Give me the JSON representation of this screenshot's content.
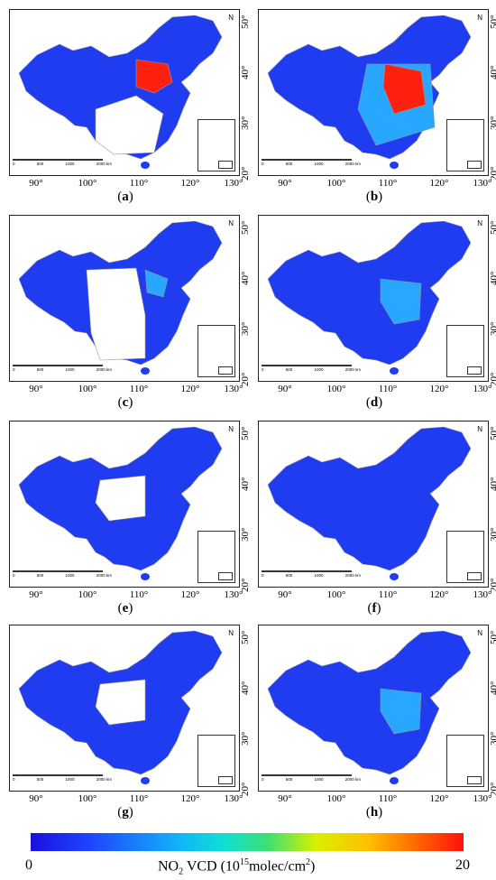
{
  "panels": [
    {
      "label": "a",
      "fill": "sparse_high"
    },
    {
      "label": "b",
      "fill": "full_high"
    },
    {
      "label": "c",
      "fill": "sparse_mid"
    },
    {
      "label": "d",
      "fill": "full_mid"
    },
    {
      "label": "e",
      "fill": "sparse_low"
    },
    {
      "label": "f",
      "fill": "full_low"
    },
    {
      "label": "g",
      "fill": "sparse_low"
    },
    {
      "label": "h",
      "fill": "full_mid"
    }
  ],
  "axes": {
    "lon_ticks": [
      "90°",
      "100°",
      "110°",
      "120°",
      "130°"
    ],
    "lat_ticks": [
      "50°",
      "40°",
      "30°",
      "20°"
    ]
  },
  "scale_bar": {
    "labels": [
      "0",
      "500",
      "1000",
      "2000 km"
    ]
  },
  "north_label": "N",
  "colorbar": {
    "min": "0",
    "max": "20",
    "title_pre": "NO",
    "title_sub": "2",
    "title_mid": " VCD  (10",
    "title_sup": "15",
    "title_post": "molec/cm",
    "title_sup2": "2",
    "title_end": ")"
  },
  "colors": {
    "low": "#1f3cf0",
    "mid": "#27a7ff",
    "high": "#ff2010",
    "gap": "#ffffff",
    "border": "#999999"
  }
}
